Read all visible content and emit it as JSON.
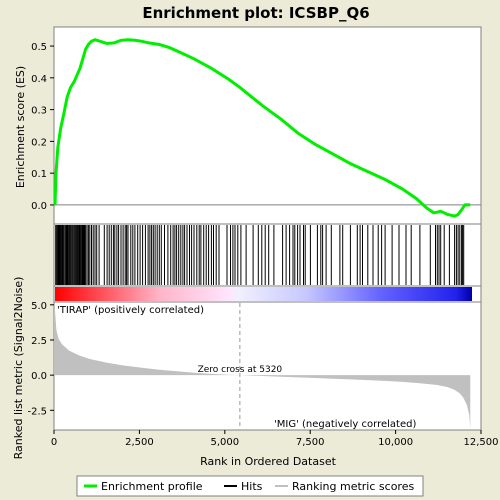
{
  "chart_data": {
    "type": "line",
    "title": "Enrichment plot: ICSBP_Q6",
    "xlabel": "Rank in Ordered Dataset",
    "ylabel_top": "Enrichment score (ES)",
    "ylabel_bottom": "Ranked list metric (Signal2Noise)",
    "x_range": [
      0,
      12000
    ],
    "x_ticks": [
      "0",
      "2,500",
      "5,000",
      "7,500",
      "10,000",
      "12,500"
    ],
    "x_tick_values": [
      0,
      2500,
      5000,
      7500,
      10000,
      12500
    ],
    "es": {
      "ylim": [
        -0.06,
        0.56
      ],
      "y_ticks": [
        "0.0",
        "0.1",
        "0.2",
        "0.3",
        "0.4",
        "0.5"
      ],
      "y_tick_values": [
        0.0,
        0.1,
        0.2,
        0.3,
        0.4,
        0.5
      ],
      "points": [
        [
          0,
          0.0
        ],
        [
          30,
          0.1
        ],
        [
          80,
          0.18
        ],
        [
          160,
          0.24
        ],
        [
          260,
          0.29
        ],
        [
          350,
          0.34
        ],
        [
          450,
          0.37
        ],
        [
          560,
          0.39
        ],
        [
          640,
          0.41
        ],
        [
          720,
          0.43
        ],
        [
          800,
          0.46
        ],
        [
          880,
          0.49
        ],
        [
          960,
          0.505
        ],
        [
          1050,
          0.515
        ],
        [
          1150,
          0.52
        ],
        [
          1300,
          0.515
        ],
        [
          1500,
          0.508
        ],
        [
          1700,
          0.51
        ],
        [
          1900,
          0.518
        ],
        [
          2100,
          0.52
        ],
        [
          2300,
          0.518
        ],
        [
          2500,
          0.515
        ],
        [
          2700,
          0.51
        ],
        [
          3000,
          0.505
        ],
        [
          3300,
          0.495
        ],
        [
          3600,
          0.48
        ],
        [
          4000,
          0.46
        ],
        [
          4500,
          0.43
        ],
        [
          5000,
          0.395
        ],
        [
          5320,
          0.37
        ],
        [
          5600,
          0.345
        ],
        [
          6000,
          0.31
        ],
        [
          6500,
          0.27
        ],
        [
          7000,
          0.225
        ],
        [
          7500,
          0.19
        ],
        [
          8000,
          0.16
        ],
        [
          8500,
          0.13
        ],
        [
          9000,
          0.105
        ],
        [
          9500,
          0.08
        ],
        [
          10000,
          0.05
        ],
        [
          10400,
          0.02
        ],
        [
          10700,
          -0.01
        ],
        [
          10900,
          -0.025
        ],
        [
          11100,
          -0.02
        ],
        [
          11300,
          -0.03
        ],
        [
          11500,
          -0.035
        ],
        [
          11600,
          -0.03
        ],
        [
          11700,
          -0.015
        ],
        [
          11800,
          0.0
        ],
        [
          11950,
          0.0
        ]
      ]
    },
    "hits": [
      20,
      50,
      70,
      95,
      115,
      140,
      165,
      190,
      215,
      240,
      265,
      300,
      330,
      360,
      390,
      420,
      450,
      480,
      510,
      540,
      570,
      600,
      625,
      650,
      680,
      705,
      730,
      760,
      790,
      820,
      850,
      880,
      920,
      960,
      1000,
      1050,
      1100,
      1150,
      1200,
      1270,
      1420,
      1500,
      1560,
      1620,
      1680,
      1720,
      1780,
      1830,
      1900,
      1960,
      2020,
      2060,
      2100,
      2180,
      2240,
      2300,
      2380,
      2450,
      2520,
      2600,
      2680,
      2730,
      2780,
      2830,
      2880,
      2940,
      3000,
      3060,
      3150,
      3250,
      3330,
      3400,
      3450,
      3500,
      3560,
      3620,
      3680,
      3730,
      3800,
      3870,
      3930,
      4000,
      4080,
      4150,
      4200,
      4280,
      4350,
      4420,
      4500,
      4560,
      4640,
      4720,
      4950,
      5050,
      5120,
      5180,
      5260,
      5350,
      5500,
      5700,
      5850,
      5950,
      6050,
      6150,
      6300,
      6550,
      6650,
      6750,
      6850,
      6900,
      6980,
      7050,
      7150,
      7200,
      7350,
      7550,
      7650,
      7700,
      7800,
      7950,
      8200,
      8280,
      8500,
      8700,
      8780,
      8850,
      9000,
      9150,
      9300,
      9400,
      9500,
      9700,
      9900,
      10100,
      10250,
      10500,
      10800,
      10950,
      11000,
      11050,
      11100,
      11200,
      11350,
      11500,
      11550,
      11600,
      11650,
      11700,
      11730,
      11760
    ],
    "colorbar": {
      "stops": [
        [
          0,
          "#ff0000"
        ],
        [
          0.25,
          "#ffb4c8"
        ],
        [
          0.42,
          "#ffe6ff"
        ],
        [
          0.44,
          "#f0f0ff"
        ],
        [
          0.6,
          "#c8c8ff"
        ],
        [
          0.78,
          "#6464ff"
        ],
        [
          0.96,
          "#2222ee"
        ],
        [
          1,
          "#0000aa"
        ]
      ]
    },
    "metric": {
      "ylim": [
        -3.9,
        5.2
      ],
      "y_ticks": [
        "-2.5",
        "0.0",
        "2.5",
        "5.0"
      ],
      "y_tick_values": [
        -2.5,
        0.0,
        2.5,
        5.0
      ],
      "points": [
        [
          0,
          4.6
        ],
        [
          40,
          3.2
        ],
        [
          100,
          2.6
        ],
        [
          200,
          2.2
        ],
        [
          400,
          1.75
        ],
        [
          700,
          1.4
        ],
        [
          1000,
          1.15
        ],
        [
          1500,
          0.88
        ],
        [
          2000,
          0.68
        ],
        [
          2500,
          0.52
        ],
        [
          3000,
          0.38
        ],
        [
          3500,
          0.27
        ],
        [
          4000,
          0.17
        ],
        [
          4500,
          0.09
        ],
        [
          5000,
          0.03
        ],
        [
          5320,
          0.0
        ],
        [
          5800,
          -0.05
        ],
        [
          6500,
          -0.11
        ],
        [
          7000,
          -0.16
        ],
        [
          7500,
          -0.2
        ],
        [
          8000,
          -0.25
        ],
        [
          8500,
          -0.3
        ],
        [
          9000,
          -0.35
        ],
        [
          9500,
          -0.41
        ],
        [
          10000,
          -0.48
        ],
        [
          10500,
          -0.57
        ],
        [
          11000,
          -0.7
        ],
        [
          11300,
          -0.85
        ],
        [
          11500,
          -1.05
        ],
        [
          11650,
          -1.3
        ],
        [
          11750,
          -1.6
        ],
        [
          11850,
          -2.1
        ],
        [
          11920,
          -2.8
        ],
        [
          11950,
          -3.8
        ],
        [
          11950,
          0.0
        ]
      ]
    },
    "zero_cross_label": "Zero cross at 5320",
    "zero_cross": 5320,
    "pos_label": "'TIRAP' (positively correlated)",
    "neg_label": "'MIG' (negatively correlated)",
    "legend": [
      "Enrichment profile",
      "Hits",
      "Ranking metric scores"
    ],
    "colors": {
      "es_line": "#00ee00",
      "hits": "#000000",
      "metric_fill": "#c0c0c0",
      "pos_label": "#cc0000",
      "neg_label": "#0000cc",
      "zero_line": "#999999"
    }
  }
}
